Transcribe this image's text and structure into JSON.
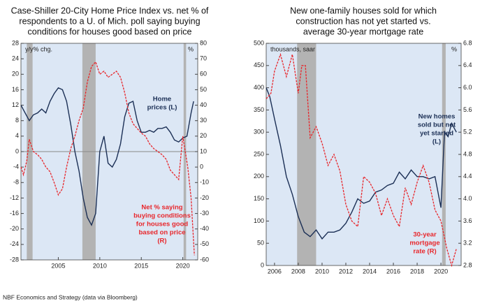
{
  "chart_data": [
    {
      "type": "line",
      "title": [
        "Case-Shiller 20-City Home Price Index vs. net % of",
        "respondents to a U. of Mich. poll saying buying",
        "conditions for houses good based on price"
      ],
      "ylabel": "y/y% chg.",
      "y2label": "%",
      "xlim": [
        2000.5,
        2021.8
      ],
      "xticks": [
        2005,
        2010,
        2015,
        2020
      ],
      "ylim": [
        -28,
        28
      ],
      "yticks": [
        -28,
        -24,
        -20,
        -16,
        -12,
        -8,
        -4,
        0,
        4,
        8,
        12,
        16,
        20,
        24,
        28
      ],
      "y2lim": [
        -60,
        80
      ],
      "y2ticks": [
        -60,
        -50,
        -40,
        -30,
        -20,
        -10,
        0,
        10,
        20,
        30,
        40,
        50,
        60,
        70,
        80
      ],
      "recessions": [
        [
          2001.2,
          2001.9
        ],
        [
          2007.9,
          2009.5
        ],
        [
          2020.1,
          2020.4
        ]
      ],
      "series": [
        {
          "name": [
            "Home",
            "prices (L)"
          ],
          "color": "#1b2f55",
          "dash": false,
          "x": [
            2000.5,
            2001,
            2001.5,
            2002,
            2002.5,
            2003,
            2003.5,
            2004,
            2004.5,
            2005,
            2005.5,
            2006,
            2006.5,
            2007,
            2007.5,
            2008,
            2008.5,
            2009,
            2009.5,
            2010,
            2010.5,
            2011,
            2011.5,
            2012,
            2012.5,
            2013,
            2013.5,
            2014,
            2014.5,
            2015,
            2015.5,
            2016,
            2016.5,
            2017,
            2017.5,
            2018,
            2018.5,
            2019,
            2019.5,
            2020,
            2020.5,
            2021,
            2021.3
          ],
          "values": [
            12,
            10,
            8,
            9.5,
            10,
            11,
            10,
            13,
            15,
            16.5,
            16,
            13,
            7,
            0,
            -5,
            -12,
            -17,
            -19,
            -16,
            0,
            4,
            -3,
            -4,
            -2,
            2,
            9,
            12.5,
            13,
            8,
            5,
            5,
            5.5,
            5,
            6,
            6,
            6.4,
            5,
            3,
            2.5,
            3.5,
            4,
            10,
            13
          ]
        },
        {
          "name": [
            "Net % saying",
            "buying conditions",
            "for houses good",
            "based on price",
            "(R)"
          ],
          "color": "#e8262b",
          "dash": true,
          "axis": "y2",
          "x": [
            2000.5,
            2000.8,
            2001.2,
            2001.5,
            2002,
            2002.5,
            2003,
            2003.5,
            2004,
            2004.5,
            2005,
            2005.5,
            2006,
            2006.5,
            2007,
            2007.5,
            2008,
            2008.5,
            2009,
            2009.5,
            2010,
            2010.5,
            2011,
            2011.5,
            2012,
            2012.5,
            2013,
            2013.5,
            2014,
            2014.5,
            2015,
            2015.5,
            2016,
            2016.5,
            2017,
            2017.5,
            2018,
            2018.5,
            2019,
            2019.5,
            2020,
            2020.3,
            2020.6,
            2021,
            2021.4
          ],
          "values": [
            0,
            -5,
            4,
            18,
            10,
            8,
            5,
            0,
            -3,
            -10,
            -18,
            -14,
            0,
            12,
            20,
            30,
            38,
            55,
            65,
            68,
            60,
            62,
            58,
            60,
            62,
            58,
            48,
            35,
            28,
            25,
            22,
            20,
            15,
            12,
            10,
            8,
            5,
            -2,
            -5,
            -8,
            20,
            10,
            0,
            -20,
            -57
          ]
        }
      ]
    },
    {
      "type": "line",
      "title": [
        "New one-family houses sold for which",
        "construction has not yet started vs.",
        "average 30-year mortgage rate"
      ],
      "ylabel": "thousands, saar",
      "y2label": "%",
      "xlim": [
        2005.3,
        2021.7
      ],
      "xticks": [
        2006,
        2008,
        2010,
        2012,
        2014,
        2016,
        2018,
        2020
      ],
      "ylim": [
        0,
        500
      ],
      "yticks": [
        0,
        50,
        100,
        150,
        200,
        250,
        300,
        350,
        400,
        450,
        500
      ],
      "y2lim": [
        2.8,
        6.8
      ],
      "y2ticks": [
        2.8,
        3.2,
        3.6,
        {
          "value": 4,
          "label": "4.0"
        },
        4.4,
        4.8,
        5.2,
        5.6,
        {
          "value": 6,
          "label": "6.0"
        },
        6.4,
        6.8
      ],
      "recessions": [
        [
          2007.9,
          2009.5
        ],
        [
          2020.1,
          2020.4
        ]
      ],
      "series": [
        {
          "name": [
            "New homes",
            "sold but not",
            "yet started",
            "(L)"
          ],
          "color": "#1b2f55",
          "dash": false,
          "x": [
            2005.3,
            2005.6,
            2006,
            2006.5,
            2007,
            2007.5,
            2008,
            2008.5,
            2009,
            2009.5,
            2010,
            2010.5,
            2011,
            2011.5,
            2012,
            2012.5,
            2013,
            2013.5,
            2014,
            2014.5,
            2015,
            2015.5,
            2016,
            2016.5,
            2017,
            2017.5,
            2018,
            2018.5,
            2019,
            2019.5,
            2020,
            2020.3,
            2020.6,
            2020.9,
            2021.3
          ],
          "values": [
            400,
            380,
            330,
            270,
            200,
            160,
            110,
            75,
            65,
            80,
            60,
            75,
            75,
            80,
            95,
            120,
            150,
            140,
            145,
            165,
            170,
            180,
            185,
            210,
            195,
            215,
            200,
            200,
            195,
            200,
            130,
            300,
            290,
            320,
            300
          ]
        },
        {
          "name": [
            "30-year",
            "mortgage",
            "rate (R)"
          ],
          "color": "#e8262b",
          "dash": true,
          "axis": "y2",
          "x": [
            2005.3,
            2005.7,
            2006,
            2006.5,
            2007,
            2007.5,
            2008,
            2008.3,
            2008.6,
            2009,
            2009.5,
            2010,
            2010.5,
            2011,
            2011.5,
            2012,
            2012.5,
            2013,
            2013.5,
            2014,
            2014.5,
            2015,
            2015.5,
            2016,
            2016.5,
            2017,
            2017.5,
            2018,
            2018.5,
            2019,
            2019.5,
            2020,
            2020.5,
            2020.9,
            2021.3
          ],
          "values": [
            5.8,
            5.9,
            6.3,
            6.6,
            6.2,
            6.6,
            5.9,
            6.4,
            6.4,
            5.1,
            5.3,
            5.0,
            4.6,
            4.8,
            4.5,
            3.9,
            3.6,
            3.5,
            4.4,
            4.3,
            4.1,
            3.7,
            4.0,
            3.7,
            3.5,
            4.2,
            3.9,
            4.3,
            4.6,
            4.3,
            3.8,
            3.6,
            3.1,
            2.8,
            3.1
          ]
        }
      ]
    }
  ],
  "footer": "NBF Economics and Strategy (data via Bloomberg)"
}
